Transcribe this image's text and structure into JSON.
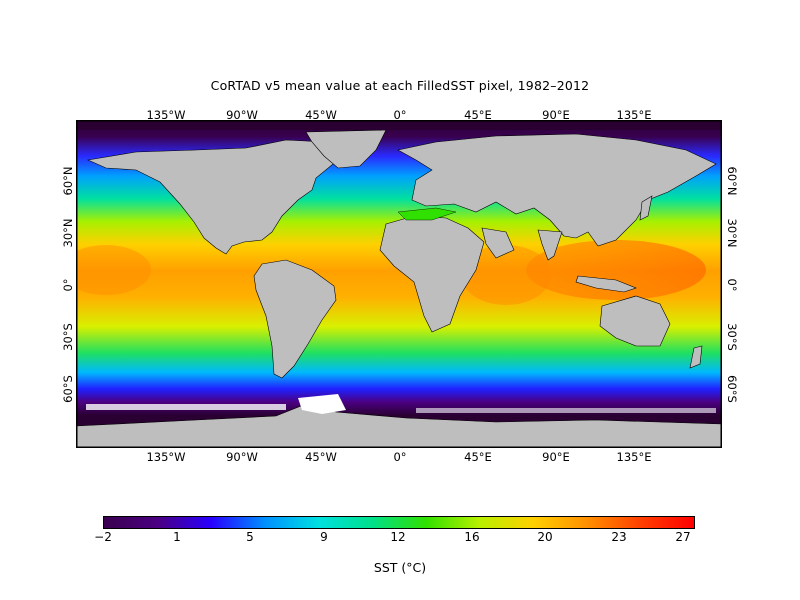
{
  "title": "CoRTAD v5 mean value at each FilledSST pixel, 1982–2012",
  "lon_labels": [
    "135°W",
    "90°W",
    "45°W",
    "0°",
    "45°E",
    "90°E",
    "135°E"
  ],
  "lat_labels": [
    "60°N",
    "30°N",
    "0°",
    "30°S",
    "60°S"
  ],
  "colorbar": {
    "ticks": [
      "−2",
      "1",
      "5",
      "9",
      "12",
      "16",
      "20",
      "23",
      "27"
    ],
    "label": "SST (°C)",
    "colors": [
      "#3a004f",
      "#4b0082",
      "#2800ff",
      "#0090ff",
      "#00e0e0",
      "#00e08a",
      "#30e000",
      "#b8f000",
      "#ffd000",
      "#ff9000",
      "#ff4000",
      "#ff0000"
    ]
  },
  "map": {
    "land_color": "#bebebe",
    "ice_color": "#ffffff",
    "polar_color": "#2a0033"
  }
}
